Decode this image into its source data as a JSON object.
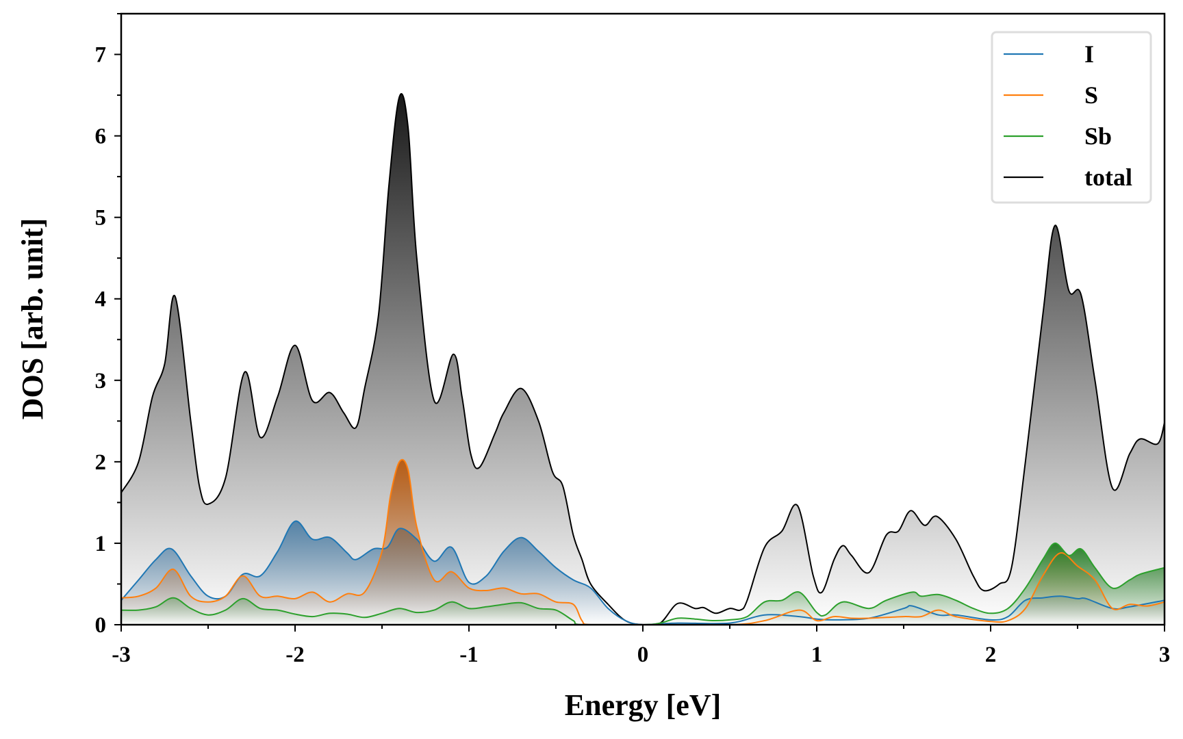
{
  "chart_data": {
    "type": "area",
    "title": "",
    "xlabel": "Energy [eV]",
    "ylabel": "DOS [arb. unit]",
    "xlim": [
      -3,
      3
    ],
    "ylim": [
      0,
      7.5
    ],
    "xticks": [
      -3,
      -2,
      -1,
      0,
      1,
      2,
      3
    ],
    "xtick_labels": [
      "-3",
      "-2",
      "-1",
      "0",
      "1",
      "2",
      "3"
    ],
    "yticks": [
      0,
      1,
      2,
      3,
      4,
      5,
      6,
      7
    ],
    "ytick_labels": [
      "0",
      "1",
      "2",
      "3",
      "4",
      "5",
      "6",
      "7"
    ],
    "grid": false,
    "legend_position": "top-right",
    "series": [
      {
        "name": "total",
        "color": "#000000",
        "fill": "#1a1a1a",
        "points": [
          [
            -3,
            1.62
          ],
          [
            -2.9,
            2.0
          ],
          [
            -2.82,
            2.8
          ],
          [
            -2.75,
            3.2
          ],
          [
            -2.69,
            4.03
          ],
          [
            -2.6,
            2.5
          ],
          [
            -2.55,
            1.7
          ],
          [
            -2.5,
            1.48
          ],
          [
            -2.4,
            1.8
          ],
          [
            -2.29,
            3.1
          ],
          [
            -2.2,
            2.3
          ],
          [
            -2.1,
            2.8
          ],
          [
            -2.0,
            3.43
          ],
          [
            -1.9,
            2.75
          ],
          [
            -1.8,
            2.85
          ],
          [
            -1.72,
            2.6
          ],
          [
            -1.65,
            2.42
          ],
          [
            -1.6,
            2.9
          ],
          [
            -1.52,
            3.8
          ],
          [
            -1.46,
            5.4
          ],
          [
            -1.4,
            6.48
          ],
          [
            -1.35,
            6.1
          ],
          [
            -1.3,
            4.5
          ],
          [
            -1.2,
            2.75
          ],
          [
            -1.09,
            3.32
          ],
          [
            -1.04,
            2.8
          ],
          [
            -0.99,
            2.1
          ],
          [
            -0.94,
            1.93
          ],
          [
            -0.85,
            2.35
          ],
          [
            -0.8,
            2.6
          ],
          [
            -0.7,
            2.9
          ],
          [
            -0.6,
            2.5
          ],
          [
            -0.52,
            1.88
          ],
          [
            -0.46,
            1.7
          ],
          [
            -0.4,
            1.1
          ],
          [
            -0.35,
            0.8
          ],
          [
            -0.3,
            0.5
          ],
          [
            -0.2,
            0.25
          ],
          [
            -0.1,
            0.05
          ],
          [
            0,
            0
          ],
          [
            0.1,
            0.02
          ],
          [
            0.2,
            0.26
          ],
          [
            0.3,
            0.2
          ],
          [
            0.35,
            0.21
          ],
          [
            0.42,
            0.14
          ],
          [
            0.5,
            0.2
          ],
          [
            0.56,
            0.18
          ],
          [
            0.6,
            0.3
          ],
          [
            0.7,
            0.95
          ],
          [
            0.8,
            1.15
          ],
          [
            0.89,
            1.46
          ],
          [
            0.98,
            0.6
          ],
          [
            1.03,
            0.4
          ],
          [
            1.1,
            0.8
          ],
          [
            1.15,
            0.97
          ],
          [
            1.2,
            0.85
          ],
          [
            1.3,
            0.64
          ],
          [
            1.4,
            1.1
          ],
          [
            1.47,
            1.15
          ],
          [
            1.54,
            1.4
          ],
          [
            1.62,
            1.22
          ],
          [
            1.69,
            1.33
          ],
          [
            1.8,
            1.05
          ],
          [
            1.9,
            0.6
          ],
          [
            1.96,
            0.42
          ],
          [
            2.05,
            0.5
          ],
          [
            2.12,
            0.7
          ],
          [
            2.2,
            2.0
          ],
          [
            2.3,
            3.8
          ],
          [
            2.37,
            4.9
          ],
          [
            2.45,
            4.1
          ],
          [
            2.52,
            4.05
          ],
          [
            2.6,
            3.0
          ],
          [
            2.7,
            1.68
          ],
          [
            2.8,
            2.1
          ],
          [
            2.86,
            2.28
          ],
          [
            2.96,
            2.22
          ],
          [
            3.0,
            2.48
          ]
        ]
      },
      {
        "name": "I",
        "color": "#1f77b4",
        "fill": "#4f7fa5",
        "points": [
          [
            -3,
            0.3
          ],
          [
            -2.9,
            0.55
          ],
          [
            -2.8,
            0.8
          ],
          [
            -2.71,
            0.93
          ],
          [
            -2.6,
            0.6
          ],
          [
            -2.5,
            0.35
          ],
          [
            -2.4,
            0.35
          ],
          [
            -2.3,
            0.62
          ],
          [
            -2.2,
            0.6
          ],
          [
            -2.1,
            0.9
          ],
          [
            -2.0,
            1.27
          ],
          [
            -1.9,
            1.05
          ],
          [
            -1.8,
            1.07
          ],
          [
            -1.7,
            0.88
          ],
          [
            -1.65,
            0.8
          ],
          [
            -1.55,
            0.93
          ],
          [
            -1.47,
            0.95
          ],
          [
            -1.4,
            1.18
          ],
          [
            -1.3,
            1.05
          ],
          [
            -1.2,
            0.78
          ],
          [
            -1.1,
            0.95
          ],
          [
            -1.0,
            0.52
          ],
          [
            -0.9,
            0.6
          ],
          [
            -0.8,
            0.9
          ],
          [
            -0.7,
            1.07
          ],
          [
            -0.6,
            0.9
          ],
          [
            -0.5,
            0.7
          ],
          [
            -0.4,
            0.55
          ],
          [
            -0.3,
            0.45
          ],
          [
            -0.2,
            0.2
          ],
          [
            -0.1,
            0.05
          ],
          [
            0,
            0
          ],
          [
            0.2,
            0.02
          ],
          [
            0.5,
            0.02
          ],
          [
            0.7,
            0.12
          ],
          [
            0.9,
            0.1
          ],
          [
            1.0,
            0.07
          ],
          [
            1.1,
            0.06
          ],
          [
            1.3,
            0.08
          ],
          [
            1.5,
            0.2
          ],
          [
            1.55,
            0.23
          ],
          [
            1.7,
            0.12
          ],
          [
            1.8,
            0.12
          ],
          [
            2.0,
            0.06
          ],
          [
            2.1,
            0.1
          ],
          [
            2.2,
            0.3
          ],
          [
            2.3,
            0.33
          ],
          [
            2.4,
            0.35
          ],
          [
            2.5,
            0.32
          ],
          [
            2.55,
            0.32
          ],
          [
            2.7,
            0.2
          ],
          [
            2.8,
            0.22
          ],
          [
            3.0,
            0.3
          ]
        ]
      },
      {
        "name": "S",
        "color": "#ff7f0e",
        "fill": "#b85a10",
        "points": [
          [
            -3,
            0.33
          ],
          [
            -2.9,
            0.35
          ],
          [
            -2.8,
            0.45
          ],
          [
            -2.7,
            0.68
          ],
          [
            -2.6,
            0.35
          ],
          [
            -2.5,
            0.28
          ],
          [
            -2.4,
            0.35
          ],
          [
            -2.3,
            0.6
          ],
          [
            -2.2,
            0.35
          ],
          [
            -2.1,
            0.35
          ],
          [
            -2.0,
            0.32
          ],
          [
            -1.9,
            0.4
          ],
          [
            -1.8,
            0.28
          ],
          [
            -1.7,
            0.38
          ],
          [
            -1.6,
            0.4
          ],
          [
            -1.5,
            0.9
          ],
          [
            -1.45,
            1.6
          ],
          [
            -1.4,
            2.0
          ],
          [
            -1.35,
            1.9
          ],
          [
            -1.3,
            1.2
          ],
          [
            -1.2,
            0.55
          ],
          [
            -1.1,
            0.65
          ],
          [
            -1.0,
            0.45
          ],
          [
            -0.9,
            0.42
          ],
          [
            -0.8,
            0.45
          ],
          [
            -0.7,
            0.38
          ],
          [
            -0.6,
            0.38
          ],
          [
            -0.5,
            0.28
          ],
          [
            -0.4,
            0.25
          ],
          [
            -0.35,
            0.05
          ],
          [
            -0.3,
            0
          ],
          [
            0,
            0
          ],
          [
            0.5,
            0
          ],
          [
            0.7,
            0.05
          ],
          [
            0.9,
            0.18
          ],
          [
            1.0,
            0.05
          ],
          [
            1.1,
            0.1
          ],
          [
            1.2,
            0.08
          ],
          [
            1.3,
            0.08
          ],
          [
            1.5,
            0.1
          ],
          [
            1.6,
            0.1
          ],
          [
            1.7,
            0.18
          ],
          [
            1.8,
            0.1
          ],
          [
            2.0,
            0.04
          ],
          [
            2.1,
            0.05
          ],
          [
            2.2,
            0.2
          ],
          [
            2.3,
            0.6
          ],
          [
            2.4,
            0.88
          ],
          [
            2.5,
            0.72
          ],
          [
            2.6,
            0.55
          ],
          [
            2.7,
            0.2
          ],
          [
            2.8,
            0.25
          ],
          [
            2.9,
            0.23
          ],
          [
            3.0,
            0.28
          ]
        ]
      },
      {
        "name": "Sb",
        "color": "#2ca02c",
        "fill": "#1f7a1f",
        "points": [
          [
            -3,
            0.18
          ],
          [
            -2.9,
            0.18
          ],
          [
            -2.8,
            0.22
          ],
          [
            -2.7,
            0.33
          ],
          [
            -2.6,
            0.2
          ],
          [
            -2.5,
            0.12
          ],
          [
            -2.4,
            0.18
          ],
          [
            -2.3,
            0.32
          ],
          [
            -2.2,
            0.2
          ],
          [
            -2.1,
            0.18
          ],
          [
            -2.0,
            0.13
          ],
          [
            -1.9,
            0.1
          ],
          [
            -1.8,
            0.14
          ],
          [
            -1.7,
            0.13
          ],
          [
            -1.6,
            0.09
          ],
          [
            -1.5,
            0.14
          ],
          [
            -1.4,
            0.2
          ],
          [
            -1.3,
            0.15
          ],
          [
            -1.2,
            0.18
          ],
          [
            -1.1,
            0.28
          ],
          [
            -1.0,
            0.2
          ],
          [
            -0.9,
            0.22
          ],
          [
            -0.8,
            0.25
          ],
          [
            -0.7,
            0.27
          ],
          [
            -0.6,
            0.2
          ],
          [
            -0.5,
            0.18
          ],
          [
            -0.4,
            0.05
          ],
          [
            -0.35,
            0
          ],
          [
            0,
            0
          ],
          [
            0.1,
            0.02
          ],
          [
            0.2,
            0.08
          ],
          [
            0.3,
            0.07
          ],
          [
            0.4,
            0.05
          ],
          [
            0.5,
            0.06
          ],
          [
            0.6,
            0.1
          ],
          [
            0.7,
            0.28
          ],
          [
            0.8,
            0.3
          ],
          [
            0.9,
            0.4
          ],
          [
            1.0,
            0.15
          ],
          [
            1.05,
            0.12
          ],
          [
            1.15,
            0.28
          ],
          [
            1.3,
            0.2
          ],
          [
            1.4,
            0.3
          ],
          [
            1.55,
            0.4
          ],
          [
            1.6,
            0.35
          ],
          [
            1.7,
            0.37
          ],
          [
            1.8,
            0.3
          ],
          [
            1.9,
            0.2
          ],
          [
            2.0,
            0.14
          ],
          [
            2.1,
            0.2
          ],
          [
            2.2,
            0.45
          ],
          [
            2.3,
            0.8
          ],
          [
            2.37,
            1.0
          ],
          [
            2.45,
            0.85
          ],
          [
            2.52,
            0.93
          ],
          [
            2.6,
            0.7
          ],
          [
            2.7,
            0.45
          ],
          [
            2.8,
            0.55
          ],
          [
            2.86,
            0.62
          ],
          [
            3.0,
            0.7
          ]
        ]
      }
    ],
    "legend": [
      "I",
      "S",
      "Sb",
      "total"
    ]
  }
}
